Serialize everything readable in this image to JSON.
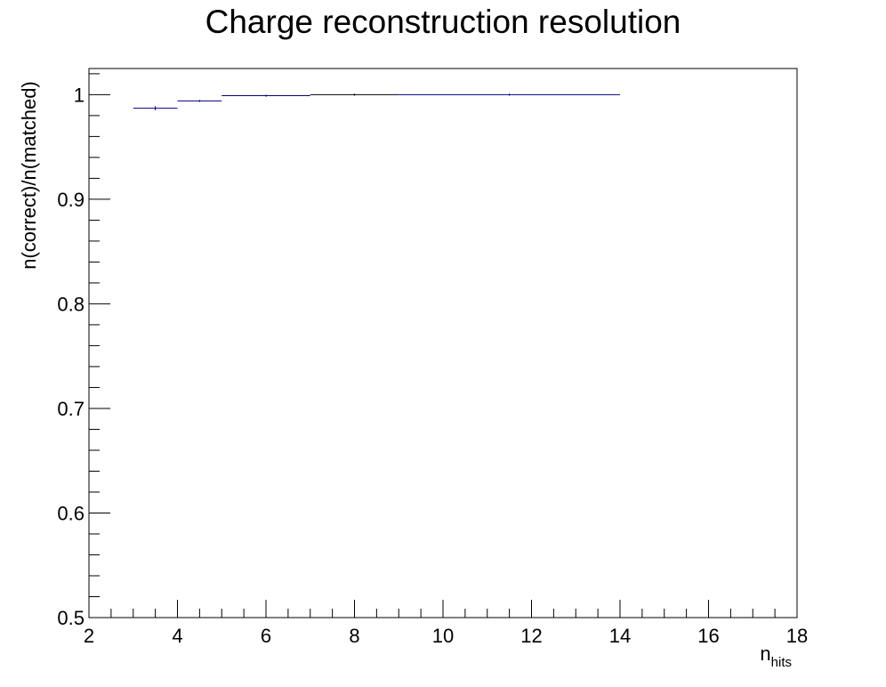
{
  "chart_data": {
    "type": "histogram",
    "title": "Charge reconstruction resolution",
    "xlabel": "n",
    "xlabel_subscript": "hits",
    "ylabel": "n(correct)/n(matched)",
    "xlim": [
      2,
      18
    ],
    "ylim": [
      0.5,
      1.025
    ],
    "x_ticks": [
      "2",
      "4",
      "6",
      "8",
      "10",
      "12",
      "14",
      "16",
      "18"
    ],
    "y_ticks": [
      "0.5",
      "0.6",
      "0.7",
      "0.8",
      "0.9",
      "1"
    ],
    "grid": false,
    "bins": [
      {
        "x_low": 3,
        "x_high": 4,
        "value": 0.987,
        "error": 0.002,
        "color": "#000080"
      },
      {
        "x_low": 4,
        "x_high": 5,
        "value": 0.994,
        "error": 0.001,
        "color": "#000080"
      },
      {
        "x_low": 5,
        "x_high": 7,
        "value": 0.999,
        "error": 0.001,
        "color": "#000080"
      },
      {
        "x_low": 7,
        "x_high": 9,
        "value": 1.0,
        "error": 0.001,
        "color": "#000000"
      },
      {
        "x_low": 9,
        "x_high": 14,
        "value": 1.0,
        "error": 0.001,
        "color": "#000080"
      }
    ]
  }
}
